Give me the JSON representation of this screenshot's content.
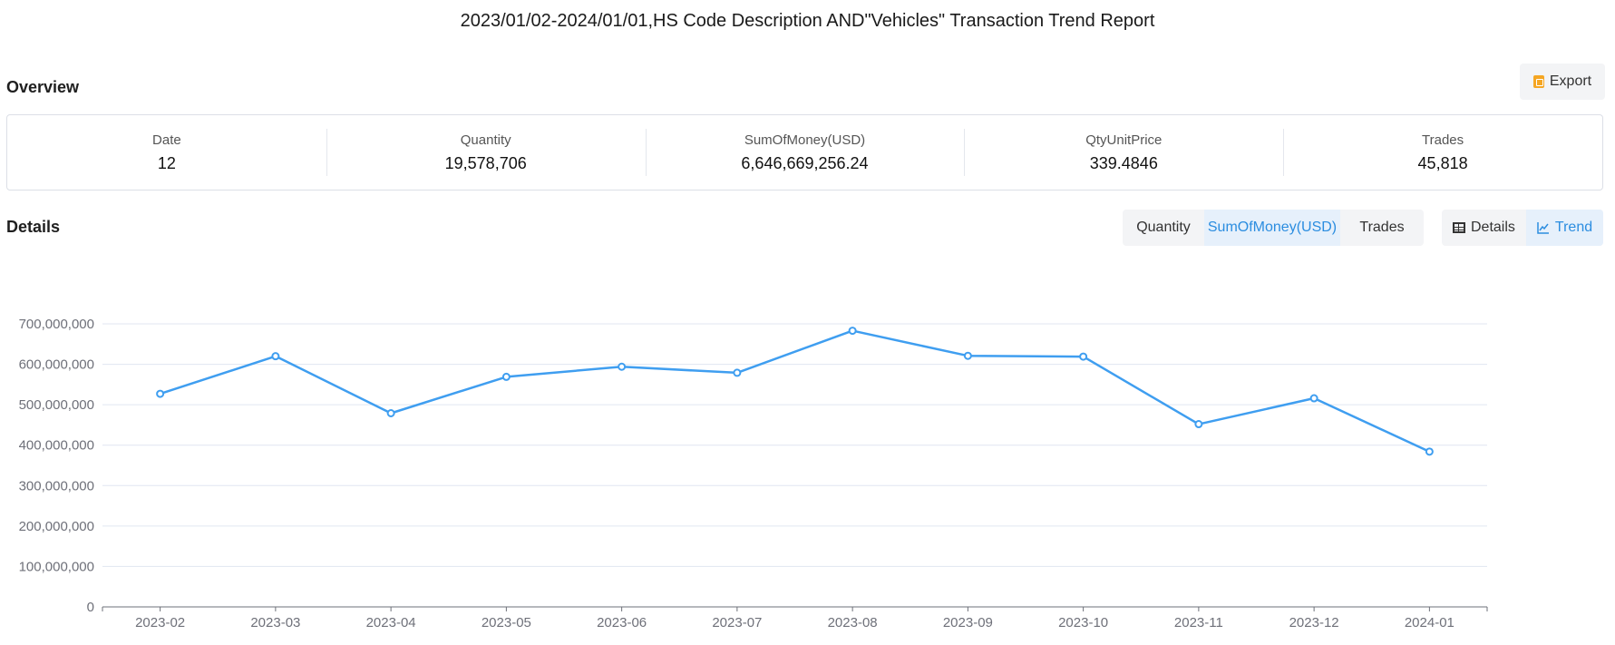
{
  "report_title": "2023/01/02-2024/01/01,HS Code Description AND\"Vehicles\" Transaction Trend Report",
  "overview": {
    "heading": "Overview",
    "export_label": "Export",
    "stats": [
      {
        "label": "Date",
        "value": "12"
      },
      {
        "label": "Quantity",
        "value": "19,578,706"
      },
      {
        "label": "SumOfMoney(USD)",
        "value": "6,646,669,256.24"
      },
      {
        "label": "QtyUnitPrice",
        "value": "339.4846"
      },
      {
        "label": "Trades",
        "value": "45,818"
      }
    ]
  },
  "details": {
    "heading": "Details",
    "metric_tabs": [
      {
        "label": "Quantity",
        "active": false
      },
      {
        "label": "SumOfMoney(USD)",
        "active": true
      },
      {
        "label": "Trades",
        "active": false
      }
    ],
    "view_tabs": [
      {
        "label": "Details",
        "icon": "table-icon",
        "active": false
      },
      {
        "label": "Trend",
        "icon": "line-chart-icon",
        "active": true
      }
    ]
  },
  "colors": {
    "accent": "#3f9ef0",
    "active_tab_bg": "#e6f0fb",
    "active_tab_text": "#2b8de0"
  },
  "chart_data": {
    "type": "line",
    "categories": [
      "2023-02",
      "2023-03",
      "2023-04",
      "2023-05",
      "2023-06",
      "2023-07",
      "2023-08",
      "2023-09",
      "2023-10",
      "2023-11",
      "2023-12",
      "2024-01"
    ],
    "series": [
      {
        "values": [
          527000000,
          620000000,
          479000000,
          569000000,
          594000000,
          579000000,
          683000000,
          621000000,
          619000000,
          452000000,
          516000000,
          384000000
        ]
      }
    ],
    "ylim": [
      0,
      700000000
    ],
    "yticks": [
      0,
      100000000,
      200000000,
      300000000,
      400000000,
      500000000,
      600000000,
      700000000
    ],
    "ytick_labels": [
      "0",
      "100,000,000",
      "200,000,000",
      "300,000,000",
      "400,000,000",
      "500,000,000",
      "600,000,000",
      "700,000,000"
    ],
    "grid": true,
    "xlabel": "",
    "ylabel": ""
  }
}
